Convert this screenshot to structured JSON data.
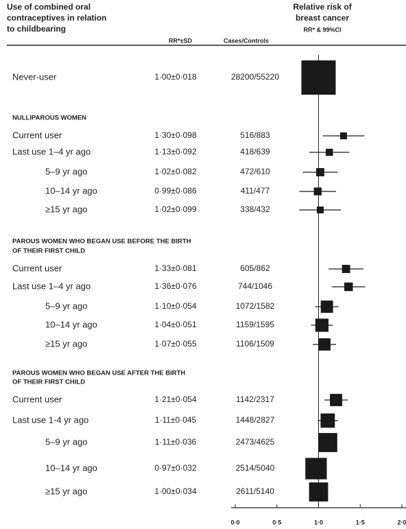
{
  "chart_data": {
    "type": "forest",
    "title_lines": [
      "Use of combined oral",
      "contraceptives in relation",
      "to childbearing"
    ],
    "col_rr_sd": "RR*±SD",
    "col_cases": "Cases/Controls",
    "plot_title_lines": [
      "Relative risk of",
      "breast cancer"
    ],
    "plot_subtitle": "RR* & 99%CI",
    "xlim": [
      -0.05,
      2.05
    ],
    "xticks": [
      {
        "value": 0,
        "label": "0·0"
      },
      {
        "value": 0.5,
        "label": "0·5"
      },
      {
        "value": 1,
        "label": "1·0"
      },
      {
        "value": 1.5,
        "label": "1·5"
      },
      {
        "value": 2,
        "label": "2·0"
      }
    ],
    "reference": 1,
    "color": "#1a1a1a",
    "groups": [
      {
        "rows": [
          {
            "label": "Never-user",
            "rr_sd": "1·00±0·018",
            "cases_controls": "28200/55220",
            "rr": 1.0,
            "lo": 0.95,
            "hi": 1.05
          }
        ]
      },
      {
        "heading": [
          "NULLIPAROUS WOMEN"
        ],
        "rows": [
          {
            "label": "Current user",
            "rr_sd": "1·30±0·098",
            "cases_controls": "516/883",
            "rr": 1.3,
            "lo": 1.05,
            "hi": 1.55
          },
          {
            "label": "Last use 1–4 yr ago",
            "rr_sd": "1·13±0·092",
            "cases_controls": "418/639",
            "rr": 1.13,
            "lo": 0.89,
            "hi": 1.37
          },
          {
            "label": "5–9 yr ago",
            "rr_sd": "1·02±0·082",
            "cases_controls": "472/610",
            "rr": 1.02,
            "lo": 0.81,
            "hi": 1.23
          },
          {
            "label": "10–14 yr ago",
            "rr_sd": "0·99±0·086",
            "cases_controls": "411/477",
            "rr": 0.99,
            "lo": 0.77,
            "hi": 1.21
          },
          {
            "label": "≥15 yr ago",
            "rr_sd": "1·02±0·099",
            "cases_controls": "338/432",
            "rr": 1.02,
            "lo": 0.77,
            "hi": 1.27
          }
        ]
      },
      {
        "heading": [
          "PAROUS WOMEN WHO BEGAN USE BEFORE THE BIRTH",
          "OF THEIR FIRST CHILD"
        ],
        "rows": [
          {
            "label": "Current user",
            "rr_sd": "1·33±0·081",
            "cases_controls": "605/862",
            "rr": 1.33,
            "lo": 1.12,
            "hi": 1.54
          },
          {
            "label": "Last use 1–4 yr ago",
            "rr_sd": "1·36±0·076",
            "cases_controls": "744/1046",
            "rr": 1.36,
            "lo": 1.16,
            "hi": 1.56
          },
          {
            "label": "5–9 yr ago",
            "rr_sd": "1·10±0·054",
            "cases_controls": "1072/1582",
            "rr": 1.1,
            "lo": 0.96,
            "hi": 1.24
          },
          {
            "label": "10–14 yr ago",
            "rr_sd": "1·04±0·051",
            "cases_controls": "1159/1595",
            "rr": 1.04,
            "lo": 0.91,
            "hi": 1.17
          },
          {
            "label": "≥15 yr ago",
            "rr_sd": "1·07±0·055",
            "cases_controls": "1106/1509",
            "rr": 1.07,
            "lo": 0.93,
            "hi": 1.21
          }
        ]
      },
      {
        "heading": [
          "PAROUS WOMEN WHO BEGAN USE AFTER THE BIRTH",
          "OF THEIR FIRST CHILD"
        ],
        "rows": [
          {
            "label": "Current user",
            "rr_sd": "1·21±0·054",
            "cases_controls": "1142/2317",
            "rr": 1.21,
            "lo": 1.07,
            "hi": 1.35
          },
          {
            "label": "Last use 1-4 yr ago",
            "rr_sd": "1·11±0·045",
            "cases_controls": "1448/2827",
            "rr": 1.11,
            "lo": 0.99,
            "hi": 1.23
          },
          {
            "label": "5–9 yr ago",
            "rr_sd": "1·11±0·036",
            "cases_controls": "2473/4625",
            "rr": 1.11,
            "lo": 1.02,
            "hi": 1.2
          },
          {
            "label": "10–14 yr ago",
            "rr_sd": "0·97±0·032",
            "cases_controls": "2514/5040",
            "rr": 0.97,
            "lo": 0.89,
            "hi": 1.05
          },
          {
            "label": "≥15 yr ago",
            "rr_sd": "1·00±0·034",
            "cases_controls": "2611/5140",
            "rr": 1.0,
            "lo": 0.91,
            "hi": 1.09
          }
        ]
      }
    ]
  }
}
